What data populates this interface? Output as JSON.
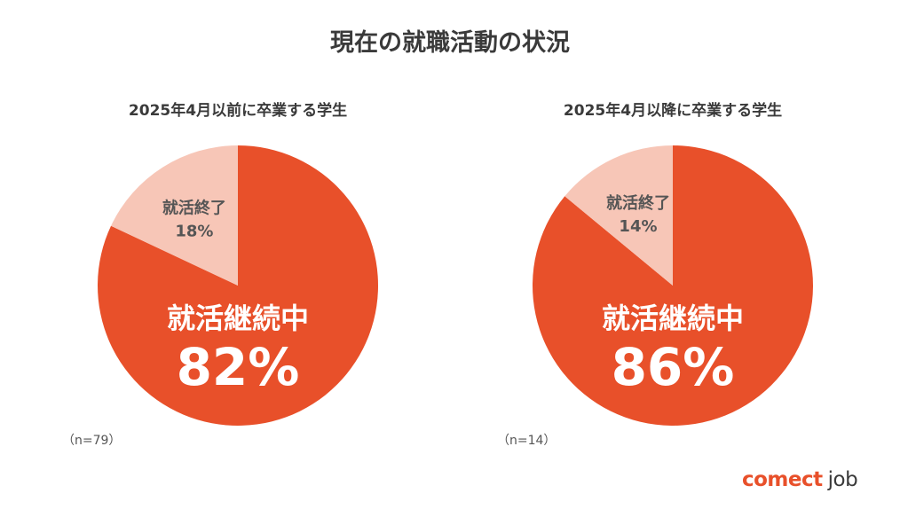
{
  "title": "現在の就職活動の状況",
  "colors": {
    "major": "#e8502a",
    "minor": "#f7c6b7",
    "text_dark": "#555555",
    "text_light": "#ffffff"
  },
  "chart_data": [
    {
      "type": "pie",
      "title": "2025年4月以前に卒業する学生",
      "note": "（n=79）",
      "slices": [
        {
          "label": "就活継続中",
          "value": 82,
          "value_text": "82%"
        },
        {
          "label": "就活終了",
          "value": 18,
          "value_text": "18%"
        }
      ]
    },
    {
      "type": "pie",
      "title": "2025年4月以降に卒業する学生",
      "note": "（n=14）",
      "slices": [
        {
          "label": "就活継続中",
          "value": 86,
          "value_text": "86%"
        },
        {
          "label": "就活終了",
          "value": 14,
          "value_text": "14%"
        }
      ]
    }
  ],
  "logo": {
    "brand": "comect",
    "suffix": "job"
  }
}
